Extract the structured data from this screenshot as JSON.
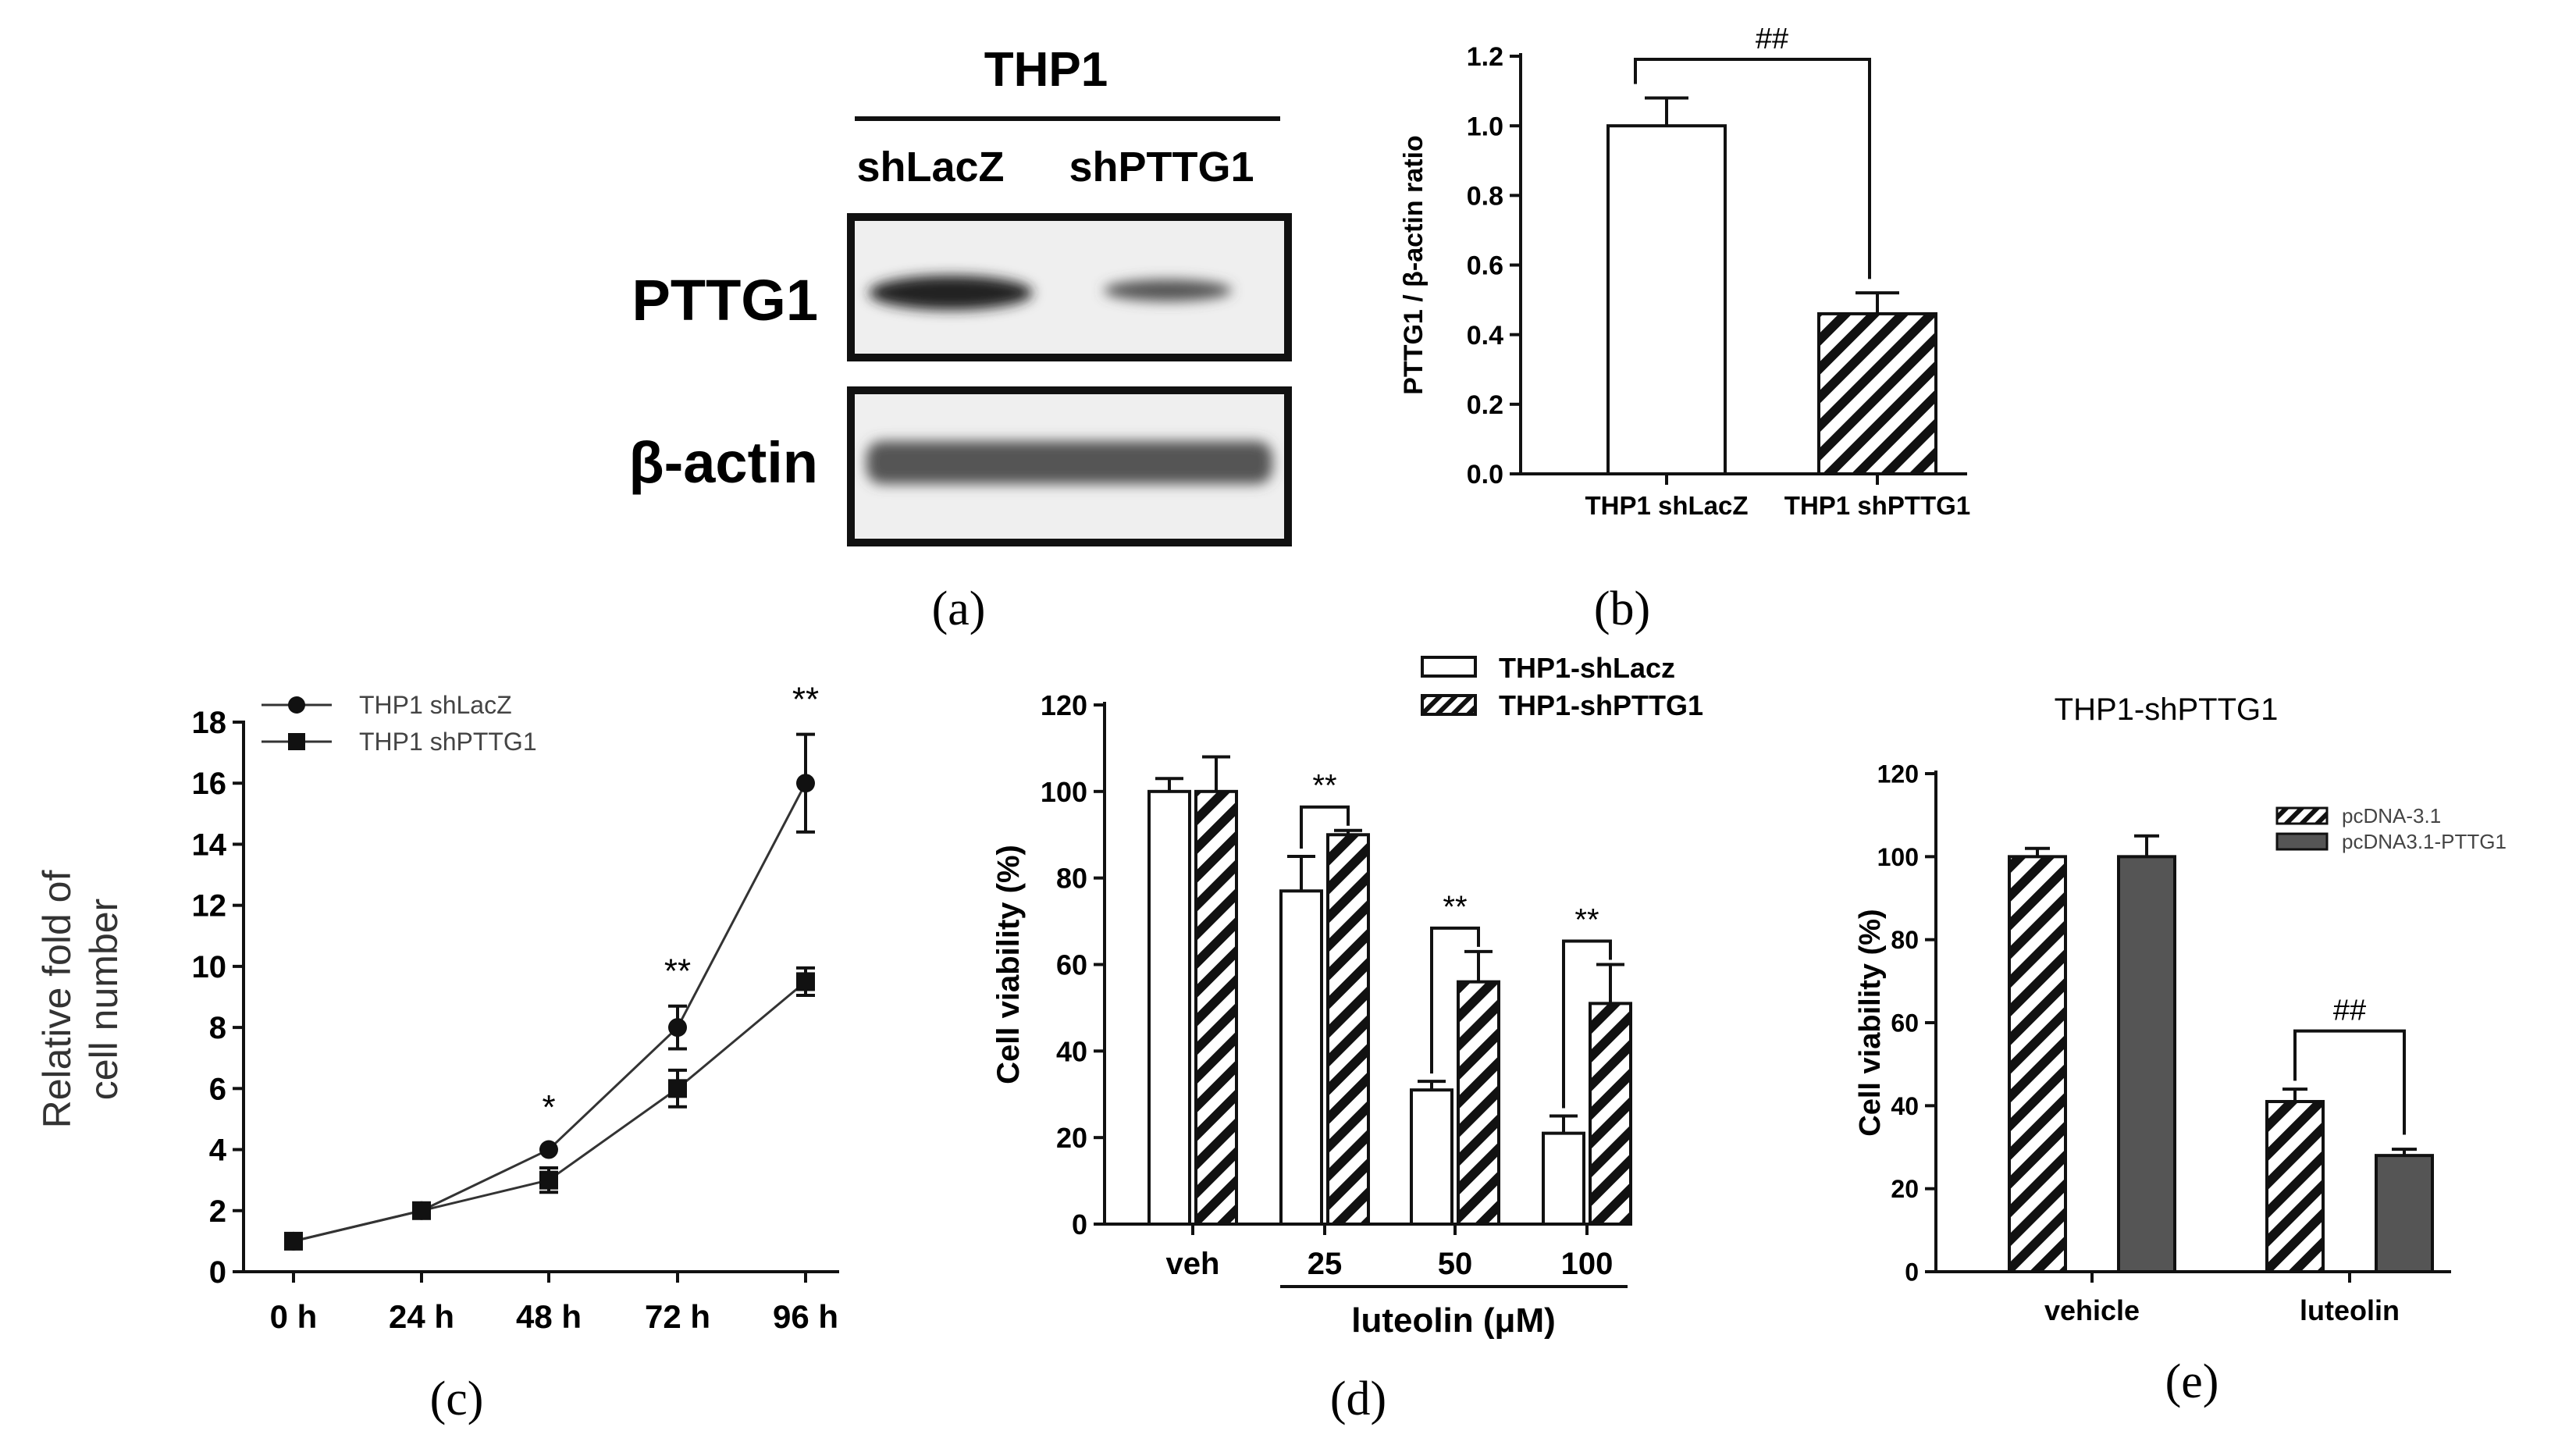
{
  "figure": {
    "panel_labels": [
      "(a)",
      "(b)",
      "(c)",
      "(d)",
      "(e)"
    ]
  },
  "blot": {
    "cell_line": "THP1",
    "lanes": [
      "shLacZ",
      "shPTTG1"
    ],
    "rows": [
      "PTTG1",
      "β-actin"
    ]
  },
  "chart_data": [
    {
      "id": "b",
      "type": "bar",
      "title": "",
      "categories": [
        "THP1 shLacZ",
        "THP1 shPTTG1"
      ],
      "values": [
        1.0,
        0.46
      ],
      "errors": [
        0.08,
        0.06
      ],
      "patterns": [
        "open",
        "hatched"
      ],
      "ylabel": "PTTG1 / β-actin ratio",
      "xlabel": "",
      "ylim": [
        0,
        1.2
      ],
      "yticks": [
        "0.0",
        "0.2",
        "0.4",
        "0.6",
        "0.8",
        "1.0",
        "1.2"
      ],
      "annotations": [
        {
          "text": "##",
          "between": [
            0,
            1
          ]
        }
      ]
    },
    {
      "id": "c",
      "type": "line",
      "categories": [
        "0 h",
        "24 h",
        "48 h",
        "72 h",
        "96 h"
      ],
      "series": [
        {
          "name": "THP1 shLacZ",
          "marker": "circle",
          "values": [
            1.0,
            2.0,
            4.0,
            8.0,
            16.0
          ],
          "errors": [
            0.15,
            0.15,
            0.25,
            0.7,
            1.6
          ]
        },
        {
          "name": "THP1 shPTTG1",
          "marker": "square",
          "values": [
            1.0,
            2.0,
            3.0,
            6.0,
            9.5
          ],
          "errors": [
            0.15,
            0.15,
            0.4,
            0.6,
            0.45
          ]
        }
      ],
      "ylabel": "Relative fold of cell number",
      "ylabel_lines": [
        "Relative fold of",
        "cell number"
      ],
      "xlabel": "",
      "ylim": [
        0,
        18
      ],
      "yticks": [
        "0",
        "2",
        "4",
        "6",
        "8",
        "10",
        "12",
        "14",
        "16",
        "18"
      ],
      "annotations": [
        {
          "text": "*",
          "at": "48 h"
        },
        {
          "text": "**",
          "at": "72 h"
        },
        {
          "text": "**",
          "at": "96 h"
        }
      ]
    },
    {
      "id": "d",
      "type": "bar",
      "categories": [
        "veh",
        "25",
        "50",
        "100"
      ],
      "series": [
        {
          "name": "THP1-shLacz",
          "pattern": "open",
          "values": [
            100,
            77,
            31,
            21
          ],
          "errors": [
            3,
            8,
            2,
            4
          ]
        },
        {
          "name": "THP1-shPTTG1",
          "pattern": "hatched",
          "values": [
            100,
            90,
            56,
            51
          ],
          "errors": [
            8,
            1,
            7,
            9
          ]
        }
      ],
      "ylabel": "Cell viability (%)",
      "xlabel": "luteolin (μM)",
      "ylim": [
        0,
        120
      ],
      "yticks": [
        "0",
        "20",
        "40",
        "60",
        "80",
        "100",
        "120"
      ],
      "annotations": [
        {
          "text": "**",
          "at": "25"
        },
        {
          "text": "**",
          "at": "50"
        },
        {
          "text": "**",
          "at": "100"
        }
      ]
    },
    {
      "id": "e",
      "type": "bar",
      "title": "THP1-shPTTG1",
      "categories": [
        "vehicle",
        "luteolin"
      ],
      "series": [
        {
          "name": "pcDNA-3.1",
          "pattern": "hatched",
          "values": [
            100,
            41
          ],
          "errors": [
            2,
            3
          ]
        },
        {
          "name": "pcDNA3.1-PTTG1",
          "pattern": "solid",
          "values": [
            100,
            28
          ],
          "errors": [
            5,
            1.5
          ]
        }
      ],
      "ylabel": "Cell viability (%)",
      "xlabel": "",
      "ylim": [
        0,
        120
      ],
      "yticks": [
        "0",
        "20",
        "40",
        "60",
        "80",
        "100",
        "120"
      ],
      "annotations": [
        {
          "text": "##",
          "at": "luteolin"
        }
      ]
    }
  ],
  "colors": {
    "ink": "#111111",
    "bar_fill_dark": "#555555",
    "blot_bg": "#efefef",
    "blot_band": "#2a2a2a",
    "blot_band_light": "#555555"
  }
}
